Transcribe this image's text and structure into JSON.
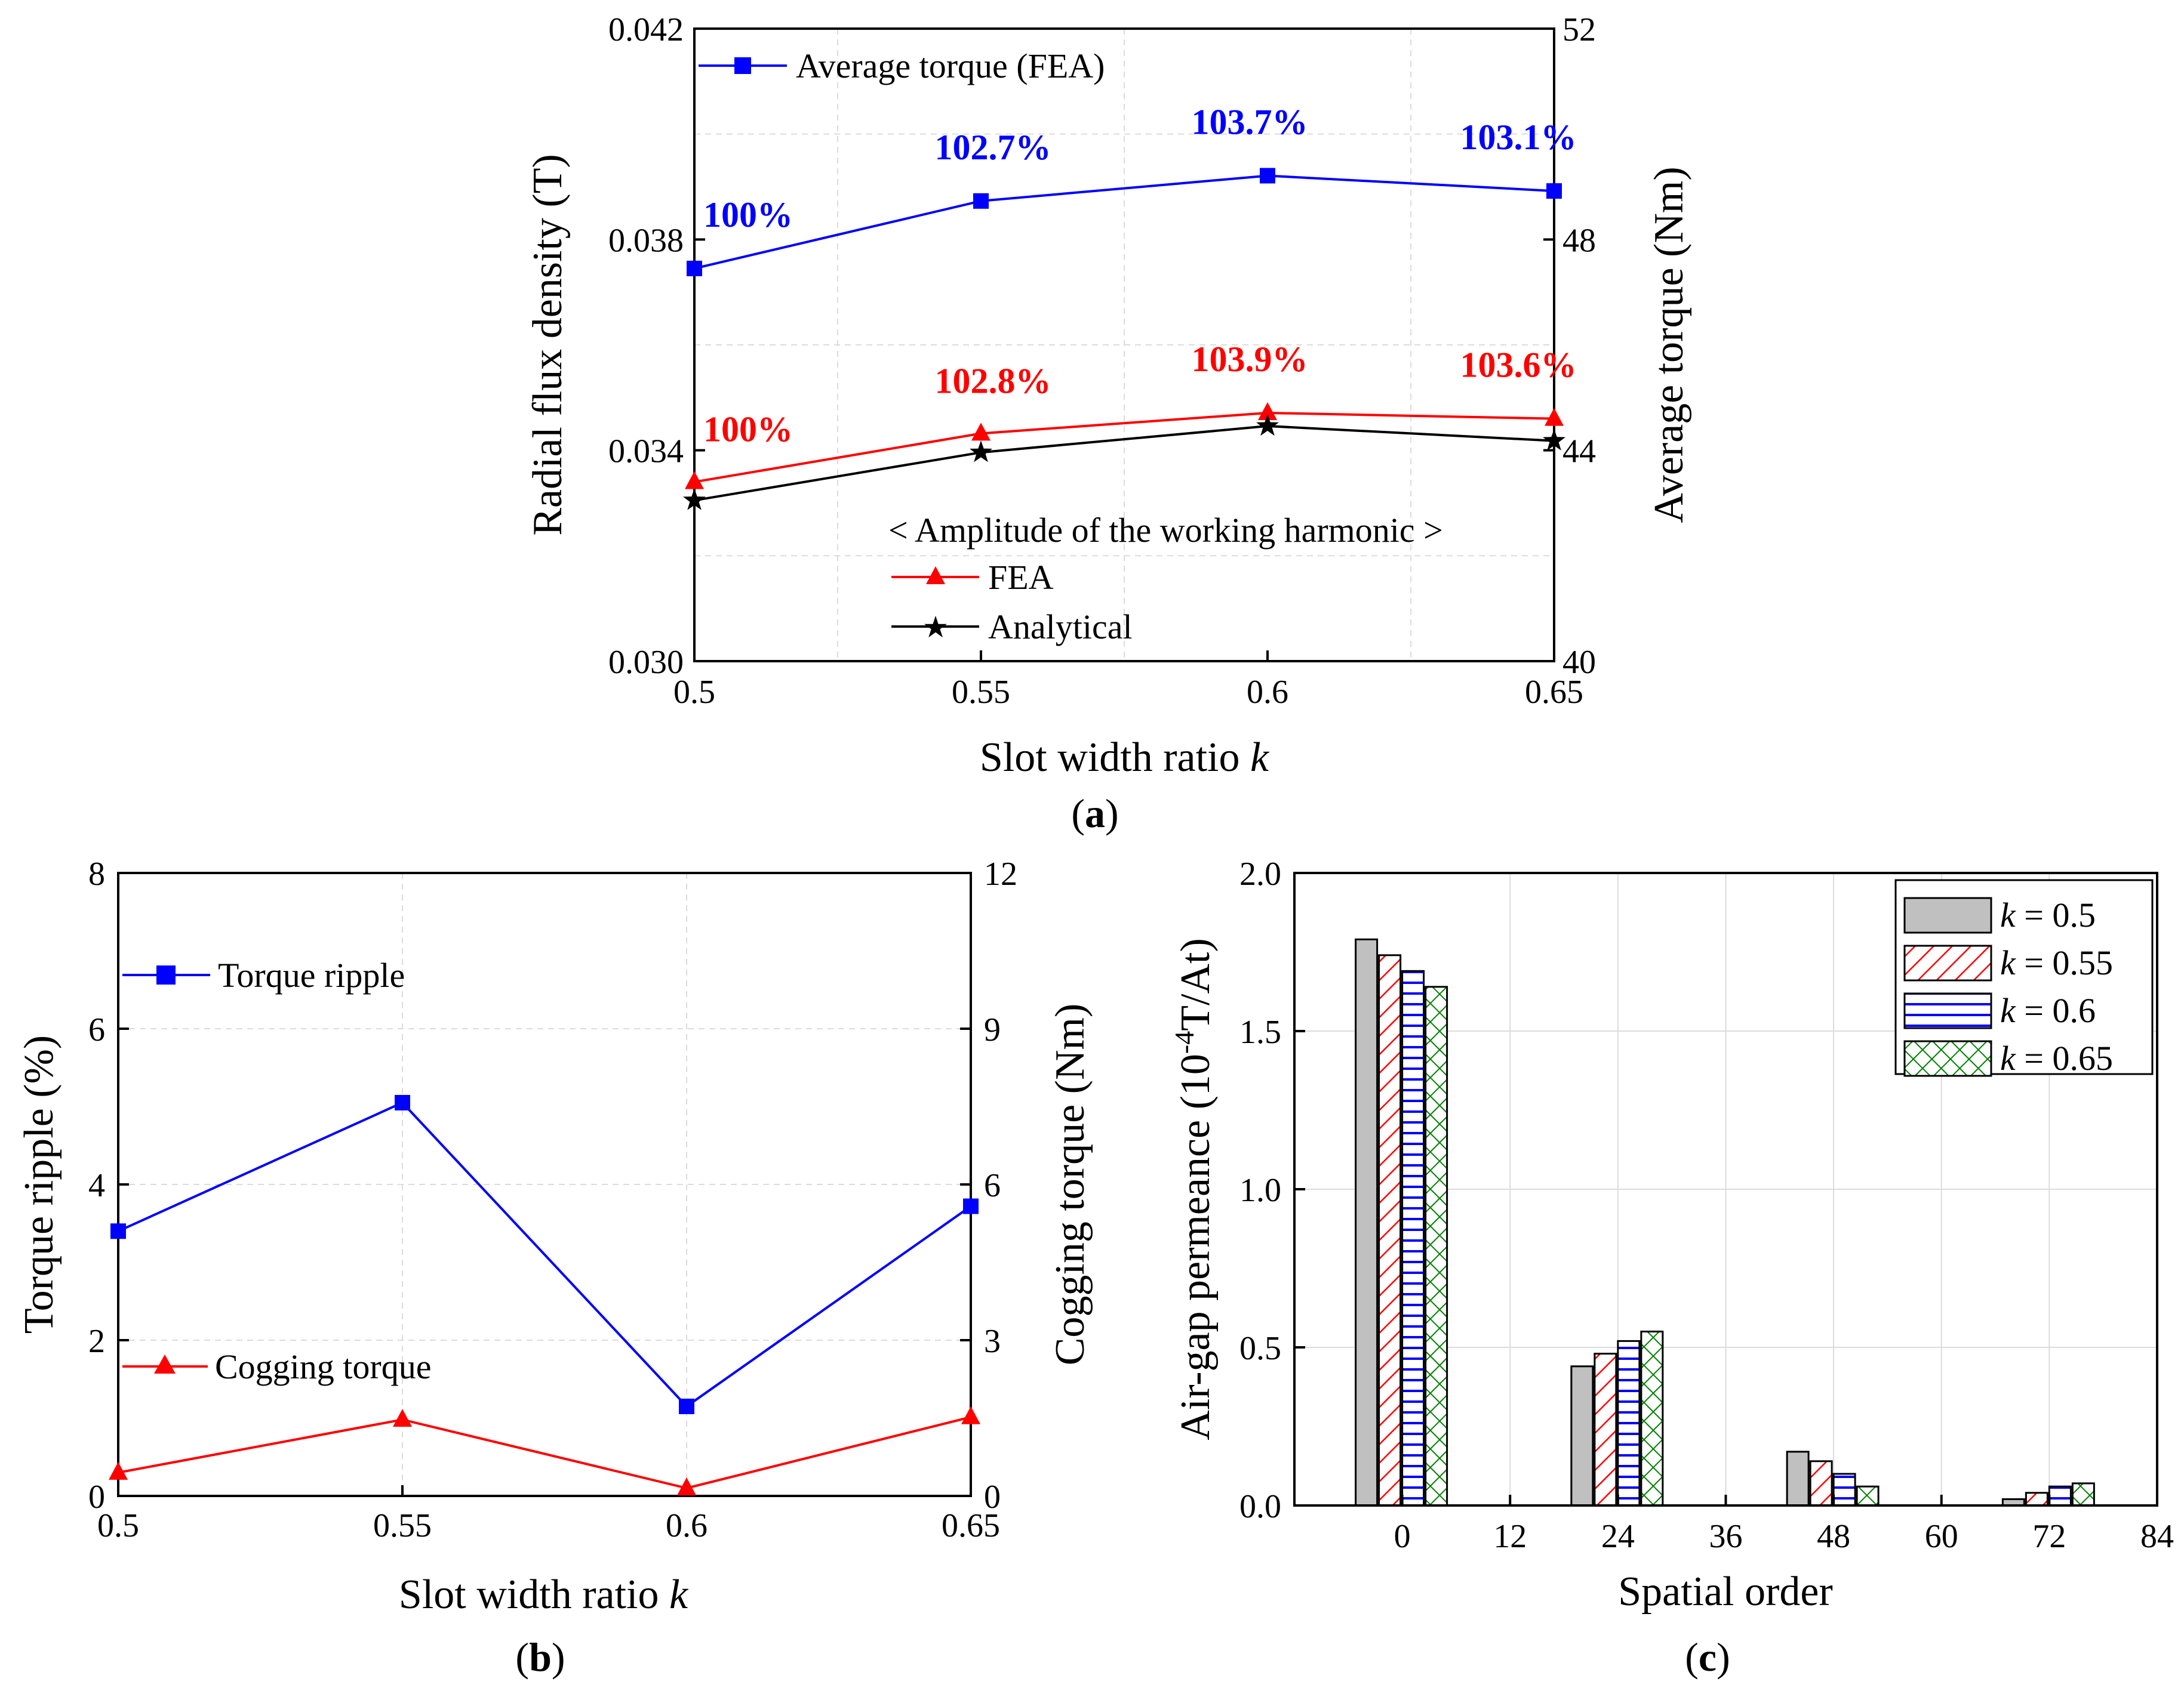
{
  "colors": {
    "blue": "#0000ff",
    "red": "#ff0000",
    "black": "#000000",
    "grid": "#dcdcdc",
    "gray": "#c0c0c0",
    "green": "#008000"
  },
  "chart_data": [
    {
      "panel": "(a)",
      "type": "line",
      "xlabel": "Slot width ratio k",
      "ylabel_left": "Radial flux density (T)",
      "ylabel_right": "Average torque (Nm)",
      "x": [
        0.5,
        0.55,
        0.6,
        0.65
      ],
      "x_ticks": [
        "0.5",
        "0.55",
        "0.6",
        "0.65"
      ],
      "xlim": [
        0.5,
        0.65
      ],
      "ylim_left": [
        0.03,
        0.042
      ],
      "ylim_right": [
        40,
        52
      ],
      "y_ticks_left": [
        "0.030",
        "0.034",
        "0.038",
        "0.042"
      ],
      "y_ticks_right": [
        "40",
        "44",
        "48",
        "52"
      ],
      "grid": true,
      "legend_header": "< Amplitude of the working harmonic >",
      "series": [
        {
          "name": "Average torque (FEA)",
          "axis": "right",
          "color": "#0000ff",
          "marker": "square",
          "values": [
            47.45,
            48.73,
            49.21,
            48.92
          ],
          "labels": [
            "100%",
            "102.7%",
            "103.7%",
            "103.1%"
          ]
        },
        {
          "name": "FEA",
          "axis": "left",
          "color": "#ff0000",
          "marker": "triangle",
          "values": [
            0.0334,
            0.03432,
            0.03471,
            0.0346
          ],
          "labels": [
            "100%",
            "102.8%",
            "103.9%",
            "103.6%"
          ]
        },
        {
          "name": "Analytical",
          "axis": "left",
          "color": "#000000",
          "marker": "star",
          "values": [
            0.03305,
            0.03396,
            0.03446,
            0.03418
          ]
        }
      ]
    },
    {
      "panel": "(b)",
      "type": "line",
      "xlabel": "Slot width ratio k",
      "ylabel_left": "Torque ripple (%)",
      "ylabel_right": "Cogging torque (Nm)",
      "x": [
        0.5,
        0.55,
        0.6,
        0.65
      ],
      "x_ticks": [
        "0.5",
        "0.55",
        "0.6",
        "0.65"
      ],
      "xlim": [
        0.5,
        0.65
      ],
      "ylim_left": [
        0,
        8
      ],
      "ylim_right": [
        0,
        12
      ],
      "y_ticks_left": [
        "0",
        "2",
        "4",
        "6",
        "8"
      ],
      "y_ticks_right": [
        "0",
        "3",
        "6",
        "9",
        "12"
      ],
      "grid": true,
      "series": [
        {
          "name": "Torque ripple",
          "axis": "left",
          "color": "#0000ff",
          "marker": "square",
          "values": [
            3.4,
            5.05,
            1.15,
            3.72
          ]
        },
        {
          "name": "Cogging torque",
          "axis": "right",
          "color": "#ff0000",
          "marker": "triangle",
          "values": [
            0.45,
            1.47,
            0.15,
            1.52
          ]
        }
      ]
    },
    {
      "panel": "(c)",
      "type": "bar",
      "xlabel": "Spatial order",
      "ylabel": "Air-gap permeance (10",
      "ylabel_sup": "-4",
      "ylabel_tail": "T/At)",
      "x_ticks": [
        "0",
        "12",
        "24",
        "36",
        "48",
        "60",
        "72",
        "84"
      ],
      "xlim": [
        -12,
        84
      ],
      "ylim": [
        0,
        2.0
      ],
      "y_ticks": [
        "0.0",
        "0.5",
        "1.0",
        "1.5",
        "2.0"
      ],
      "grid": true,
      "legend_position": "top-right",
      "categories": [
        0,
        24,
        48,
        72
      ],
      "series": [
        {
          "name": "k = 0.5",
          "k_value": "0.5",
          "pattern": "solid-gray",
          "values": [
            1.79,
            0.44,
            0.17,
            0.02
          ]
        },
        {
          "name": "k = 0.55",
          "k_value": "0.55",
          "pattern": "red-diagonal",
          "values": [
            1.74,
            0.48,
            0.14,
            0.04
          ]
        },
        {
          "name": "k = 0.6",
          "k_value": "0.6",
          "pattern": "blue-horizontal",
          "values": [
            1.69,
            0.52,
            0.1,
            0.06
          ]
        },
        {
          "name": "k = 0.65",
          "k_value": "0.65",
          "pattern": "green-crosshatch",
          "values": [
            1.64,
            0.55,
            0.06,
            0.07
          ]
        }
      ]
    }
  ]
}
